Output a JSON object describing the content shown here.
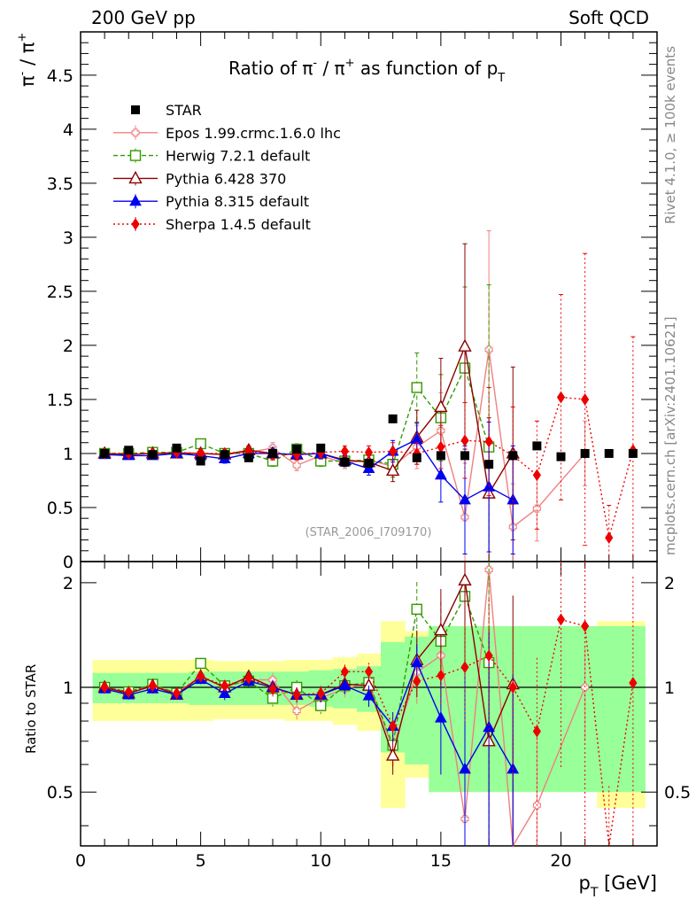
{
  "header": {
    "left": "200 GeV pp",
    "right": "Soft QCD"
  },
  "side": {
    "rivet": "Rivet 4.1.0, ≥ 100k events",
    "mcplots": "mcplots.cern.ch [arXiv:2401.10621]"
  },
  "chart_data": {
    "type": "scatter",
    "title_parts": [
      "Ratio of ",
      "π",
      "-",
      " / ",
      "π",
      "+",
      " as function of p",
      "T"
    ],
    "ylabel_parts": [
      "π",
      "-",
      " / ",
      "π",
      "+"
    ],
    "xlabel_parts": [
      "p",
      "T",
      " [GeV]"
    ],
    "ratio_ylabel": "Ratio to STAR",
    "analysis_id": "(STAR_2006_I709170)",
    "xlim": [
      0,
      24
    ],
    "ylim": [
      0,
      4.9
    ],
    "ratio_ylim": [
      0.35,
      2.3
    ],
    "x_ticks": [
      "0",
      "5",
      "10",
      "15",
      "20"
    ],
    "y_ticks": [
      "0",
      "0.5",
      "1",
      "1.5",
      "2",
      "2.5",
      "3",
      "3.5",
      "4",
      "4.5"
    ],
    "ratio_ticks": [
      "0.5",
      "1",
      "2"
    ],
    "star": {
      "name": "STAR",
      "x": [
        1,
        2,
        3,
        4,
        5,
        6,
        7,
        8,
        9,
        10,
        11,
        12,
        13,
        14,
        15,
        16,
        17,
        18,
        19,
        20,
        21,
        22,
        23
      ],
      "y": [
        1.0,
        1.03,
        0.99,
        1.05,
        0.93,
        0.99,
        0.96,
        1.0,
        1.04,
        1.05,
        0.92,
        0.91,
        1.32,
        0.96,
        0.98,
        0.98,
        0.9,
        0.98,
        1.07,
        0.97,
        1.0,
        1.0,
        1.0
      ],
      "band_yellow": [
        0.2,
        0.2,
        0.2,
        0.2,
        0.2,
        0.19,
        0.19,
        0.19,
        0.2,
        0.2,
        0.22,
        0.25,
        0.55,
        0.45,
        0.5,
        0.5,
        0.5,
        0.5,
        0.5,
        0.5,
        0.5,
        0.55,
        0.55
      ],
      "band_green": [
        0.1,
        0.1,
        0.1,
        0.1,
        0.11,
        0.11,
        0.11,
        0.11,
        0.11,
        0.12,
        0.13,
        0.15,
        0.35,
        0.4,
        0.5,
        0.5,
        0.5,
        0.5,
        0.5,
        0.5,
        0.5,
        0.5,
        0.5
      ]
    },
    "series": [
      {
        "name": "Epos 1.99.crmc.1.6.0 lhc",
        "color": "#f08080",
        "dash": "",
        "marker": "opencross",
        "x": [
          1,
          2,
          3,
          4,
          5,
          6,
          7,
          8,
          9,
          10,
          11,
          12,
          13,
          14,
          15,
          16,
          17,
          18,
          19,
          21
        ],
        "y": [
          0.99,
          0.99,
          1.0,
          1.01,
          1.0,
          0.99,
          1.01,
          1.05,
          0.89,
          0.98,
          0.91,
          0.94,
          0.88,
          1.06,
          1.21,
          0.41,
          1.96,
          0.32,
          0.49,
          1.0
        ],
        "err": [
          0.03,
          0.03,
          0.03,
          0.03,
          0.03,
          0.04,
          0.04,
          0.05,
          0.05,
          0.05,
          0.05,
          0.06,
          0.1,
          0.2,
          0.35,
          0.5,
          1.1,
          0.4,
          0.3,
          0.3
        ]
      },
      {
        "name": "Herwig 7.2.1 default",
        "color": "#339900",
        "dash": "5,3",
        "marker": "opensquare",
        "x": [
          1,
          2,
          3,
          4,
          5,
          6,
          7,
          8,
          9,
          10,
          11,
          12,
          13,
          14,
          15,
          16,
          17
        ],
        "y": [
          1.0,
          1.0,
          1.01,
          1.01,
          1.09,
          1.0,
          1.0,
          0.93,
          1.04,
          0.93,
          0.93,
          0.94,
          0.9,
          1.61,
          1.33,
          1.79,
          1.06
        ],
        "err": [
          0.03,
          0.03,
          0.03,
          0.03,
          0.04,
          0.04,
          0.04,
          0.05,
          0.05,
          0.05,
          0.05,
          0.06,
          0.12,
          0.32,
          0.4,
          0.75,
          1.5
        ]
      },
      {
        "name": "Pythia 6.428 370",
        "color": "#8b0000",
        "dash": "",
        "marker": "opentriangle",
        "x": [
          1,
          2,
          3,
          4,
          5,
          6,
          7,
          8,
          9,
          10,
          11,
          12,
          13,
          14,
          15,
          16,
          17,
          18
        ],
        "y": [
          1.0,
          0.99,
          1.0,
          1.0,
          1.0,
          0.99,
          1.03,
          1.0,
          0.99,
          1.0,
          0.94,
          0.92,
          0.84,
          1.15,
          1.43,
          1.99,
          0.63,
          1.0
        ],
        "err": [
          0.03,
          0.03,
          0.03,
          0.03,
          0.03,
          0.04,
          0.04,
          0.05,
          0.05,
          0.05,
          0.05,
          0.06,
          0.1,
          0.25,
          0.45,
          0.95,
          0.7,
          0.8
        ]
      },
      {
        "name": "Pythia 8.315 default",
        "color": "#0000ee",
        "dash": "",
        "marker": "triangle",
        "x": [
          1,
          2,
          3,
          4,
          5,
          6,
          7,
          8,
          9,
          10,
          11,
          12,
          13,
          14,
          15,
          16,
          17,
          18
        ],
        "y": [
          0.99,
          0.98,
          0.98,
          1.0,
          0.98,
          0.95,
          1.0,
          1.0,
          0.99,
          1.0,
          0.93,
          0.86,
          1.02,
          1.13,
          0.8,
          0.57,
          0.69,
          0.57
        ],
        "err": [
          0.03,
          0.03,
          0.03,
          0.03,
          0.03,
          0.04,
          0.04,
          0.05,
          0.05,
          0.05,
          0.05,
          0.06,
          0.1,
          0.15,
          0.25,
          0.5,
          0.6,
          0.5
        ]
      },
      {
        "name": "Sherpa 1.4.5 default",
        "color": "#ee0000",
        "dash": "2,3",
        "marker": "diamond",
        "x": [
          1,
          2,
          3,
          4,
          5,
          6,
          7,
          8,
          9,
          10,
          11,
          12,
          13,
          14,
          15,
          16,
          17,
          18,
          19,
          20,
          21,
          22,
          23
        ],
        "y": [
          1.0,
          1.0,
          1.0,
          1.01,
          1.0,
          1.0,
          1.02,
          0.99,
          0.99,
          1.01,
          1.02,
          1.01,
          1.02,
          1.0,
          1.06,
          1.12,
          1.11,
          0.98,
          0.8,
          1.52,
          1.5,
          0.22,
          1.03
        ],
        "err": [
          0.03,
          0.03,
          0.03,
          0.03,
          0.03,
          0.04,
          0.04,
          0.05,
          0.05,
          0.05,
          0.05,
          0.06,
          0.08,
          0.1,
          0.2,
          0.35,
          0.5,
          0.45,
          0.5,
          0.95,
          1.35,
          0.3,
          1.05
        ]
      }
    ]
  }
}
